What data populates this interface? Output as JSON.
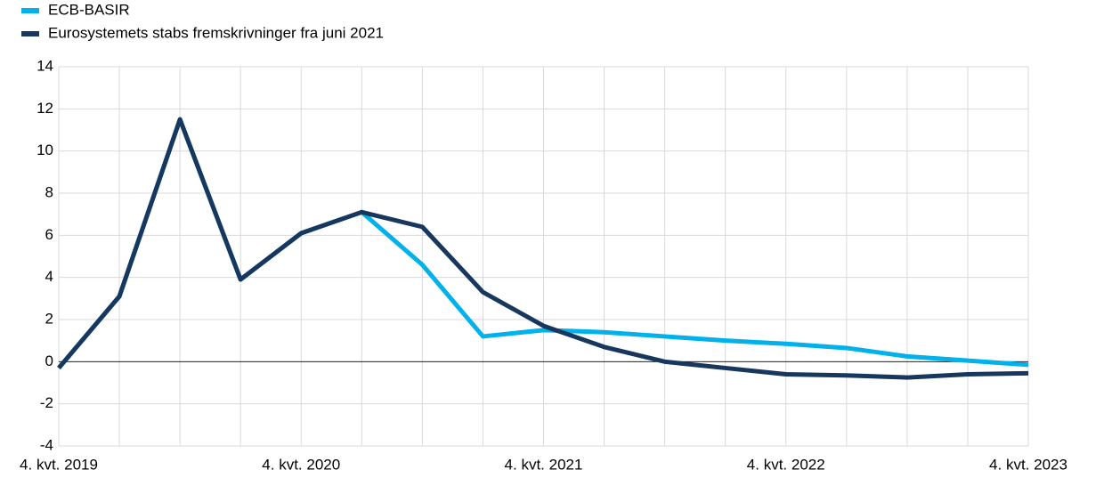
{
  "chart_data": {
    "type": "line",
    "categories": [
      "4. kvt. 2019",
      null,
      null,
      null,
      "4. kvt. 2020",
      null,
      null,
      null,
      "4. kvt. 2021",
      null,
      null,
      null,
      "4. kvt. 2022",
      null,
      null,
      null,
      "4. kvt. 2023"
    ],
    "series": [
      {
        "name": "ECB-BASIR",
        "color": "#00b1ea",
        "values": [
          -0.3,
          3.1,
          11.5,
          3.9,
          6.1,
          7.1,
          4.6,
          1.2,
          1.5,
          1.4,
          1.2,
          1.0,
          0.85,
          0.65,
          0.25,
          0.05,
          -0.15
        ]
      },
      {
        "name": "Eurosystemets stabs fremskrivninger fra juni 2021",
        "color": "#17375e",
        "values": [
          -0.3,
          3.1,
          11.5,
          3.9,
          6.1,
          7.1,
          6.4,
          3.3,
          1.7,
          0.7,
          0.0,
          -0.3,
          -0.6,
          -0.65,
          -0.75,
          -0.6,
          -0.55
        ]
      }
    ],
    "ylim": [
      -4,
      14
    ],
    "yticks": [
      -4,
      -2,
      0,
      2,
      4,
      6,
      8,
      10,
      12,
      14
    ],
    "grid": true
  }
}
